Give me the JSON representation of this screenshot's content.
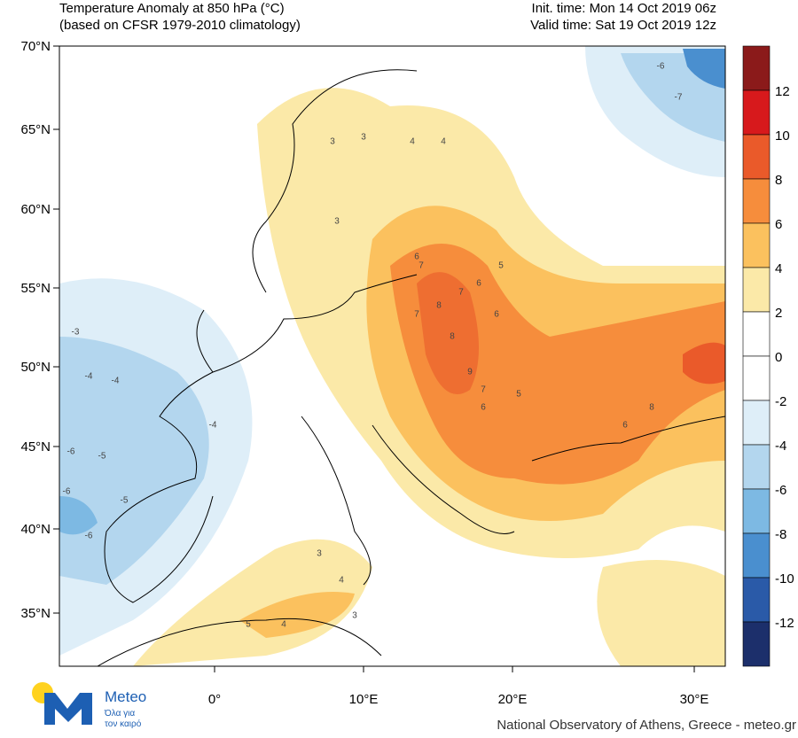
{
  "header": {
    "title": "Temperature Anomaly at 850 hPa (°C)",
    "subtitle": "(based on CFSR 1979-2010 climatology)",
    "init_time": "Init. time: Mon 14 Oct 2019 06z",
    "valid_time": "Valid time: Sat 19 Oct 2019 12z"
  },
  "lat_labels": [
    "70°N",
    "65°N",
    "60°N",
    "55°N",
    "50°N",
    "45°N",
    "40°N",
    "35°N"
  ],
  "lon_labels": [
    "0°",
    "10°E",
    "20°E",
    "30°E"
  ],
  "colorbar": {
    "labels": [
      "12",
      "10",
      "8",
      "6",
      "4",
      "2",
      "0",
      "-2",
      "-4",
      "-6",
      "-8",
      "-10",
      "-12"
    ],
    "colors": [
      "#8b1a1a",
      "#d7191c",
      "#ea5a2a",
      "#f68d3c",
      "#fbc15e",
      "#fbe9a8",
      "#ffffff",
      "#ffffff",
      "#deeef8",
      "#b3d6ee",
      "#7db9e3",
      "#4a8fcf",
      "#2a5aa8",
      "#1c2f6b"
    ]
  },
  "contour_labels": [
    "3",
    "3",
    "4",
    "3",
    "4",
    "6",
    "7",
    "7",
    "8",
    "7",
    "6",
    "5",
    "6",
    "8",
    "9",
    "7",
    "8",
    "6",
    "6",
    "5",
    "-4",
    "-4",
    "-5",
    "-6",
    "-5",
    "-6",
    "-3",
    "-4",
    "-6",
    "-7",
    "-6",
    "3",
    "4",
    "5",
    "4",
    "3"
  ],
  "logo": {
    "name": "Meteo",
    "tagline1": "Όλα για",
    "tagline2": "τον καιρό"
  },
  "footer": "National Observatory of Athens, Greece - meteo.gr"
}
